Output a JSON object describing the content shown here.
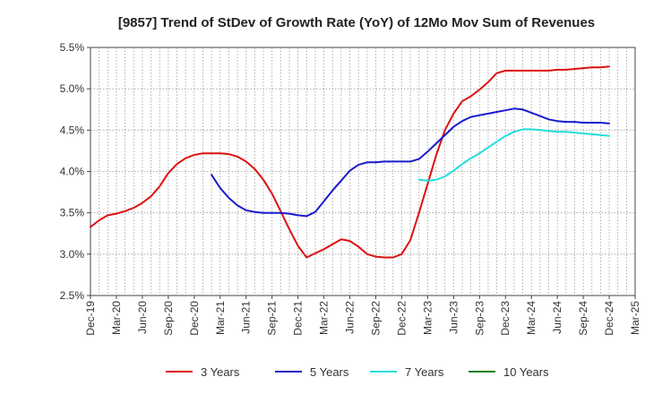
{
  "chart_data": {
    "type": "line",
    "title": "[9857]  Trend of StDev of Growth Rate (YoY) of 12Mo Mov Sum of Revenues",
    "xlabel": "",
    "ylabel": "",
    "ylim": [
      2.5,
      5.5
    ],
    "y_ticks": [
      2.5,
      3.0,
      3.5,
      4.0,
      4.5,
      5.0,
      5.5
    ],
    "y_tick_labels": [
      "2.5%",
      "3.0%",
      "3.5%",
      "4.0%",
      "4.5%",
      "5.0%",
      "5.5%"
    ],
    "x_range_months": [
      0,
      63
    ],
    "x_tick_positions": [
      0,
      3,
      6,
      9,
      12,
      15,
      18,
      21,
      24,
      27,
      30,
      33,
      36,
      39,
      42,
      45,
      48,
      51,
      54,
      57,
      60,
      63
    ],
    "x_tick_labels": [
      "Dec-19",
      "Mar-20",
      "Jun-20",
      "Sep-20",
      "Dec-20",
      "Mar-21",
      "Jun-21",
      "Sep-21",
      "Dec-21",
      "Mar-22",
      "Jun-22",
      "Sep-22",
      "Dec-22",
      "Mar-23",
      "Jun-23",
      "Sep-23",
      "Dec-23",
      "Mar-24",
      "Jun-24",
      "Sep-24",
      "Dec-24",
      "Mar-25"
    ],
    "grid": true,
    "legend_position": "bottom",
    "series": [
      {
        "name": "3 Years",
        "color": "#dd1111",
        "x": [
          0,
          1,
          2,
          3,
          4,
          5,
          6,
          7,
          8,
          9,
          10,
          11,
          12,
          13,
          14,
          15,
          16,
          17,
          18,
          19,
          20,
          21,
          22,
          23,
          24,
          25,
          26,
          27,
          28,
          29,
          30,
          31,
          32,
          33,
          34,
          35,
          36,
          37,
          38,
          39,
          40,
          41,
          42,
          43,
          44,
          45,
          46,
          47,
          48,
          49,
          50,
          51,
          52,
          53,
          54,
          55,
          56,
          57,
          58,
          59,
          60
        ],
        "values": [
          3.33,
          3.41,
          3.47,
          3.49,
          3.52,
          3.56,
          3.62,
          3.7,
          3.82,
          3.98,
          4.09,
          4.16,
          4.2,
          4.22,
          4.22,
          4.22,
          4.21,
          4.18,
          4.12,
          4.03,
          3.9,
          3.73,
          3.52,
          3.3,
          3.1,
          2.96,
          3.01,
          3.06,
          3.12,
          3.18,
          3.16,
          3.09,
          3.0,
          2.97,
          2.96,
          2.96,
          3.0,
          3.17,
          3.5,
          3.85,
          4.2,
          4.5,
          4.7,
          4.85,
          4.91,
          4.99,
          5.08,
          5.19,
          5.22,
          5.22,
          5.22,
          5.22,
          5.22,
          5.22,
          5.23,
          5.23,
          5.24,
          5.25,
          5.26,
          5.26,
          5.27
        ]
      },
      {
        "name": "5 Years",
        "color": "#1a1acc",
        "x": [
          14,
          15,
          16,
          17,
          18,
          19,
          20,
          21,
          22,
          23,
          24,
          25,
          26,
          27,
          28,
          29,
          30,
          31,
          32,
          33,
          34,
          35,
          36,
          37,
          38,
          39,
          40,
          41,
          42,
          43,
          44,
          45,
          46,
          47,
          48,
          49,
          50,
          51,
          52,
          53,
          54,
          55,
          56,
          57,
          58,
          59,
          60
        ],
        "values": [
          3.96,
          3.8,
          3.68,
          3.59,
          3.53,
          3.51,
          3.5,
          3.5,
          3.5,
          3.49,
          3.47,
          3.46,
          3.51,
          3.64,
          3.77,
          3.89,
          4.01,
          4.08,
          4.11,
          4.11,
          4.12,
          4.12,
          4.12,
          4.12,
          4.15,
          4.24,
          4.34,
          4.44,
          4.54,
          4.61,
          4.66,
          4.68,
          4.7,
          4.72,
          4.74,
          4.76,
          4.75,
          4.71,
          4.67,
          4.63,
          4.61,
          4.6,
          4.6,
          4.59,
          4.59,
          4.59,
          4.58
        ]
      },
      {
        "name": "7 Years",
        "color": "#22dddd",
        "x": [
          38,
          39,
          40,
          41,
          42,
          43,
          44,
          45,
          46,
          47,
          48,
          49,
          50,
          51,
          52,
          53,
          54,
          55,
          56,
          57,
          58,
          59,
          60
        ],
        "values": [
          3.9,
          3.89,
          3.9,
          3.94,
          4.01,
          4.09,
          4.16,
          4.22,
          4.29,
          4.36,
          4.43,
          4.48,
          4.51,
          4.51,
          4.5,
          4.49,
          4.48,
          4.48,
          4.47,
          4.46,
          4.45,
          4.44,
          4.43
        ]
      },
      {
        "name": "10 Years",
        "color": "#1a801a",
        "x": [],
        "values": []
      }
    ]
  }
}
